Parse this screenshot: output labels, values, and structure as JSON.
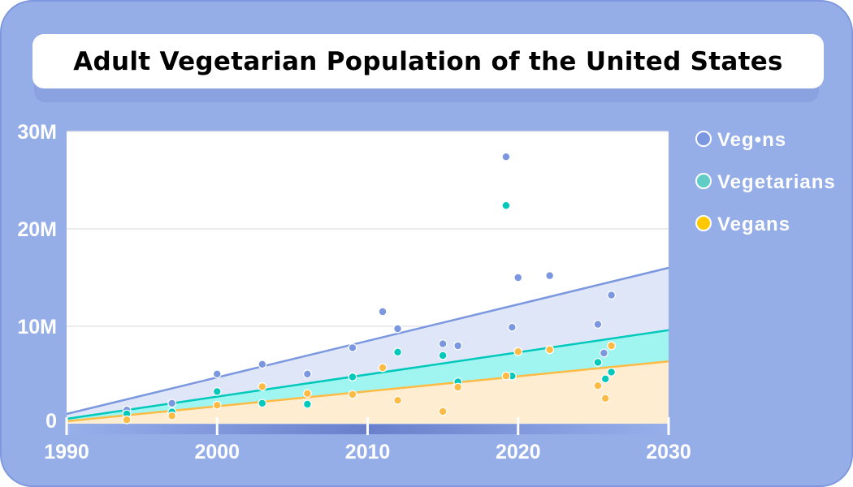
{
  "chart_data": {
    "type": "scatter",
    "title": "Adult Vegetarian Population of the United States",
    "xlim": [
      1990,
      2030
    ],
    "ylim": [
      0,
      30000000
    ],
    "x_ticks": [
      "1990",
      "2000",
      "2010",
      "2020",
      "2030"
    ],
    "y_ticks": [
      "0",
      "10M",
      "20M",
      "30M"
    ],
    "grid": "horizontal",
    "legend_placement": "right",
    "series": [
      {
        "name": "Veg•ns",
        "color": "#7b97e0",
        "fill": "#dfe6f8",
        "trend": [
          [
            1990,
            1.0
          ],
          [
            2030,
            16.0
          ]
        ],
        "points": [
          [
            1994,
            1.4
          ],
          [
            1997,
            2.1
          ],
          [
            2000,
            5.1
          ],
          [
            2003,
            6.1
          ],
          [
            2006,
            5.1
          ],
          [
            2009,
            7.8
          ],
          [
            2011,
            11.5
          ],
          [
            2012,
            9.75
          ],
          [
            2015,
            8.2
          ],
          [
            2016,
            8.0
          ],
          [
            2019.2,
            27.4
          ],
          [
            2020,
            15.0
          ],
          [
            2019.6,
            9.9
          ],
          [
            2022.1,
            15.2
          ],
          [
            2025.3,
            10.2
          ],
          [
            2025.7,
            7.25
          ],
          [
            2026.2,
            13.2
          ]
        ]
      },
      {
        "name": "Vegetarians",
        "color": "#00c9bb",
        "fill": "#a0f5f0",
        "trend": [
          [
            1990,
            0.5
          ],
          [
            2030,
            9.6
          ]
        ],
        "points": [
          [
            1994,
            1.0
          ],
          [
            1997,
            1.2
          ],
          [
            2000,
            3.3
          ],
          [
            2003,
            2.1
          ],
          [
            2006,
            2.0
          ],
          [
            2009,
            4.8
          ],
          [
            2011,
            5.75
          ],
          [
            2012,
            7.35
          ],
          [
            2015,
            7.0
          ],
          [
            2016,
            4.3
          ],
          [
            2019.2,
            22.4
          ],
          [
            2019.6,
            4.9
          ],
          [
            2020,
            7.4
          ],
          [
            2022.1,
            7.6
          ],
          [
            2025.3,
            6.3
          ],
          [
            2025.8,
            4.6
          ],
          [
            2026.2,
            5.3
          ]
        ]
      },
      {
        "name": "Vegans",
        "color": "#ffbb44",
        "fill": "#ffedd2",
        "trend": [
          [
            1990,
            0.25
          ],
          [
            2030,
            6.4
          ]
        ],
        "points": [
          [
            1994,
            0.4
          ],
          [
            1997,
            0.8
          ],
          [
            2000,
            1.9
          ],
          [
            2003,
            3.8
          ],
          [
            2006,
            3.1
          ],
          [
            2009,
            3.0
          ],
          [
            2011,
            5.75
          ],
          [
            2012,
            2.4
          ],
          [
            2015,
            1.25
          ],
          [
            2016,
            3.75
          ],
          [
            2019.2,
            4.9
          ],
          [
            2020,
            7.4
          ],
          [
            2022.1,
            7.6
          ],
          [
            2025.3,
            3.9
          ],
          [
            2025.8,
            2.6
          ],
          [
            2026.2,
            8.0
          ]
        ]
      }
    ],
    "legend": [
      {
        "label": "Veg•ns",
        "color": "#7b97e0"
      },
      {
        "label": "Vegetarians",
        "color": "#5fcdc5"
      },
      {
        "label": "Vegans",
        "color": "#ffc800"
      }
    ],
    "y_unit": "millions"
  }
}
